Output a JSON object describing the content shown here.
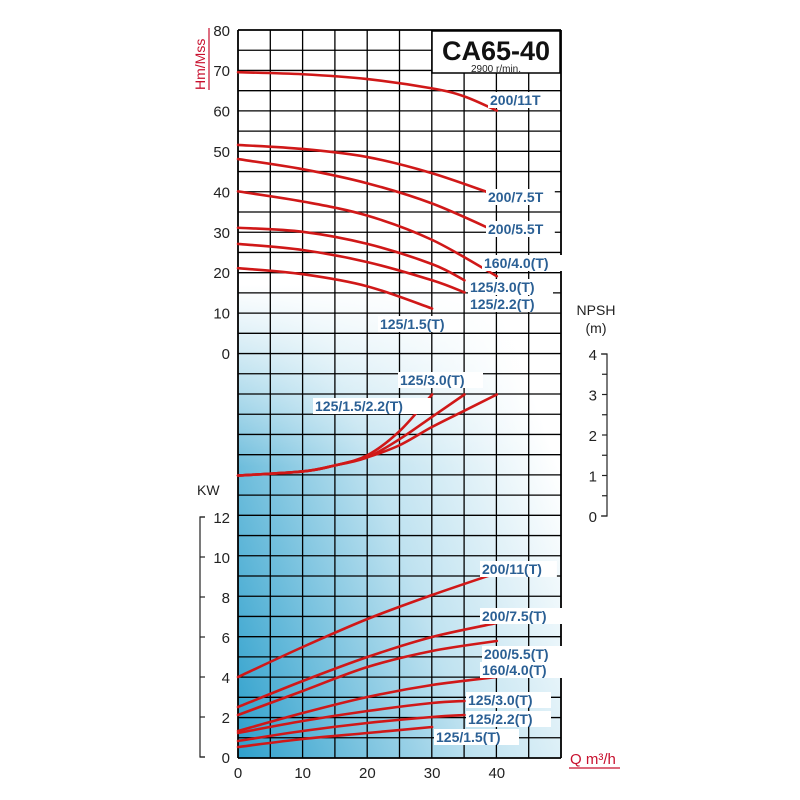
{
  "chart_data": [
    {
      "type": "line",
      "title": "CA65-40",
      "subtitle": "2900 r/min.",
      "xlabel": "Q m³/h",
      "ylabel": "Hm/Mss",
      "xlim": [
        0,
        50
      ],
      "ylim": [
        0,
        80
      ],
      "x_ticks": [
        0,
        10,
        20,
        30,
        40
      ],
      "y_ticks": [
        0,
        10,
        20,
        30,
        40,
        50,
        60,
        70,
        80
      ],
      "grid": true,
      "series": [
        {
          "name": "200/11T",
          "x": [
            0,
            10,
            20,
            30,
            35,
            40
          ],
          "y": [
            69.5,
            69,
            67.8,
            65.5,
            63.5,
            60
          ]
        },
        {
          "name": "200/7.5T",
          "x": [
            0,
            10,
            20,
            30,
            40
          ],
          "y": [
            51.5,
            50.5,
            48.5,
            44.5,
            39
          ]
        },
        {
          "name": "200/5.5T",
          "x": [
            0,
            10,
            20,
            30,
            40
          ],
          "y": [
            48,
            45.5,
            42,
            37,
            30
          ]
        },
        {
          "name": "160/4.0(T)",
          "x": [
            0,
            10,
            20,
            30,
            40
          ],
          "y": [
            40,
            37.5,
            34,
            28,
            19
          ]
        },
        {
          "name": "125/3.0(T)",
          "x": [
            0,
            10,
            20,
            30,
            35
          ],
          "y": [
            31,
            30,
            27,
            22,
            18
          ]
        },
        {
          "name": "125/2.2(T)",
          "x": [
            0,
            10,
            20,
            30,
            35
          ],
          "y": [
            27,
            25.5,
            22.5,
            18,
            15
          ]
        },
        {
          "name": "125/1.5(T)",
          "x": [
            0,
            10,
            20,
            30
          ],
          "y": [
            21,
            19.5,
            16.5,
            11
          ]
        }
      ]
    },
    {
      "type": "line",
      "ylabel": "NPSH (m)",
      "xlim": [
        0,
        50
      ],
      "ylim": [
        0,
        4
      ],
      "y_ticks": [
        0,
        1,
        2,
        3,
        4
      ],
      "series": [
        {
          "name": "125/1.5/2.2(T)",
          "x": [
            0,
            10,
            15,
            20,
            25,
            30
          ],
          "y": [
            1,
            1.1,
            1.25,
            1.5,
            2.1,
            3.0
          ]
        },
        {
          "name": "125/3.0(T)",
          "x": [
            0,
            10,
            15,
            20,
            25,
            30,
            35
          ],
          "y": [
            1,
            1.1,
            1.25,
            1.45,
            1.9,
            2.45,
            3.0
          ]
        },
        {
          "x": [
            0,
            10,
            15,
            20,
            25,
            30,
            35,
            40
          ],
          "y": [
            1,
            1.1,
            1.25,
            1.45,
            1.75,
            2.2,
            2.6,
            3.0
          ]
        }
      ]
    },
    {
      "type": "line",
      "ylabel": "KW",
      "xlim": [
        0,
        50
      ],
      "ylim": [
        0,
        12
      ],
      "y_ticks": [
        0,
        2,
        4,
        6,
        8,
        10,
        12
      ],
      "series": [
        {
          "name": "200/11(T)",
          "x": [
            0,
            10,
            20,
            30,
            40
          ],
          "y": [
            4,
            5.5,
            6.9,
            8.1,
            9.2
          ]
        },
        {
          "name": "200/7.5(T)",
          "x": [
            0,
            10,
            20,
            30,
            40
          ],
          "y": [
            2.5,
            3.8,
            5.0,
            6.0,
            6.7
          ]
        },
        {
          "name": "200/5.5(T)",
          "x": [
            0,
            10,
            20,
            30,
            40
          ],
          "y": [
            2.1,
            3.3,
            4.5,
            5.3,
            5.8
          ]
        },
        {
          "name": "160/4.0(T)",
          "x": [
            0,
            10,
            20,
            30,
            40
          ],
          "y": [
            1.3,
            2.2,
            3.0,
            3.6,
            4.0
          ]
        },
        {
          "name": "125/3.0(T)",
          "x": [
            0,
            10,
            20,
            30,
            35
          ],
          "y": [
            1.2,
            1.8,
            2.3,
            2.7,
            2.8
          ]
        },
        {
          "name": "125/2.2(T)",
          "x": [
            0,
            10,
            20,
            30,
            35
          ],
          "y": [
            0.8,
            1.3,
            1.7,
            2.0,
            2.1
          ]
        },
        {
          "name": "125/1.5(T)",
          "x": [
            0,
            10,
            20,
            30
          ],
          "y": [
            0.5,
            0.9,
            1.2,
            1.5
          ]
        }
      ]
    }
  ],
  "colors": {
    "curve": "#d01818",
    "label": "#2a5f94",
    "axis_title": "#c8102e",
    "gradient": "#3aa6cf"
  }
}
